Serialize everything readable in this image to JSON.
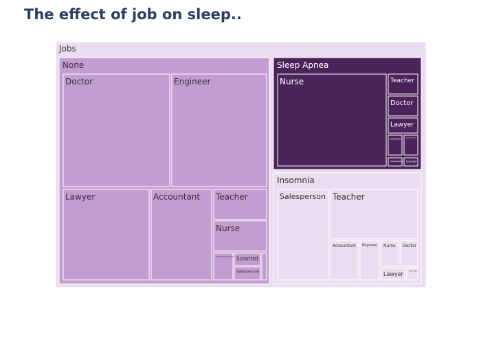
{
  "chart_data": {
    "type": "treemap",
    "title": "The effect of job on sleep..",
    "root": "Jobs",
    "colors": {
      "root": "#ecdcf0",
      "None": "#c39cd2",
      "Sleep Apnea": "#4a235a",
      "Insomnia": "#ecdcf0",
      "border": "#ffffff"
    },
    "groups": [
      {
        "name": "None",
        "children": [
          {
            "name": "Doctor"
          },
          {
            "name": "Engineer"
          },
          {
            "name": "Lawyer"
          },
          {
            "name": "Accountant"
          },
          {
            "name": "Teacher"
          },
          {
            "name": "Nurse"
          },
          {
            "name": "Software Engineer"
          },
          {
            "name": "Scientist"
          },
          {
            "name": "Salesperson"
          },
          {
            "name": "Sales Representative"
          }
        ]
      },
      {
        "name": "Sleep Apnea",
        "children": [
          {
            "name": "Nurse"
          },
          {
            "name": "Teacher"
          },
          {
            "name": "Doctor"
          },
          {
            "name": "Lawyer"
          },
          {
            "name": "Scientist"
          },
          {
            "name": "Sales Representative"
          },
          {
            "name": "Salesperson"
          },
          {
            "name": "Engineer"
          }
        ]
      },
      {
        "name": "Insomnia",
        "children": [
          {
            "name": "Salesperson"
          },
          {
            "name": "Teacher"
          },
          {
            "name": "Accountant"
          },
          {
            "name": "Engineer"
          },
          {
            "name": "Nurse"
          },
          {
            "name": "Doctor"
          },
          {
            "name": "Lawyer"
          },
          {
            "name": "Software Engineer"
          }
        ]
      }
    ]
  }
}
